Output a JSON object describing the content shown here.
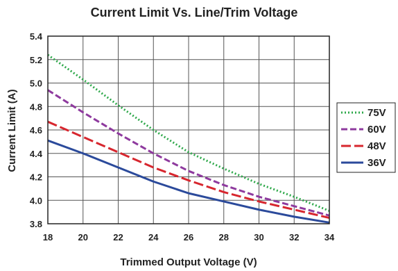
{
  "chart_data": {
    "type": "line",
    "title": "Current Limit Vs. Line/Trim Voltage",
    "xlabel": "Trimmed Output Voltage (V)",
    "ylabel": "Current Limit (A)",
    "xlim": [
      18,
      34
    ],
    "ylim": [
      3.8,
      5.4
    ],
    "xticks": [
      18,
      20,
      22,
      24,
      26,
      28,
      30,
      32,
      34
    ],
    "yticks": [
      3.8,
      4.0,
      4.2,
      4.4,
      4.6,
      4.8,
      5.0,
      5.2,
      5.4
    ],
    "ytick_labels": [
      "3.8",
      "4.0",
      "4.2",
      "4.4",
      "4.6",
      "4.8",
      "5.0",
      "5.2",
      "5.4"
    ],
    "grid": true,
    "legend_position": "right",
    "series": [
      {
        "name": "75V",
        "color": "#2ea84a",
        "style": "dotted",
        "x": [
          18,
          20,
          22,
          24,
          26,
          28,
          30,
          32,
          34
        ],
        "y": [
          5.24,
          5.03,
          4.81,
          4.6,
          4.41,
          4.27,
          4.14,
          4.03,
          3.91
        ]
      },
      {
        "name": "60V",
        "color": "#8e3a9e",
        "style": "dashed",
        "x": [
          18,
          20,
          22,
          24,
          26,
          28,
          30,
          32,
          34
        ],
        "y": [
          4.94,
          4.75,
          4.57,
          4.4,
          4.25,
          4.13,
          4.03,
          3.95,
          3.87
        ]
      },
      {
        "name": "48V",
        "color": "#d7262e",
        "style": "longdash",
        "x": [
          18,
          20,
          22,
          24,
          26,
          28,
          30,
          32,
          34
        ],
        "y": [
          4.67,
          4.54,
          4.41,
          4.28,
          4.17,
          4.07,
          3.99,
          3.92,
          3.85
        ]
      },
      {
        "name": "36V",
        "color": "#2b4a9b",
        "style": "solid",
        "x": [
          18,
          20,
          22,
          24,
          26,
          28,
          30,
          32,
          34
        ],
        "y": [
          4.51,
          4.4,
          4.28,
          4.16,
          4.06,
          3.99,
          3.92,
          3.86,
          3.81
        ]
      }
    ]
  }
}
